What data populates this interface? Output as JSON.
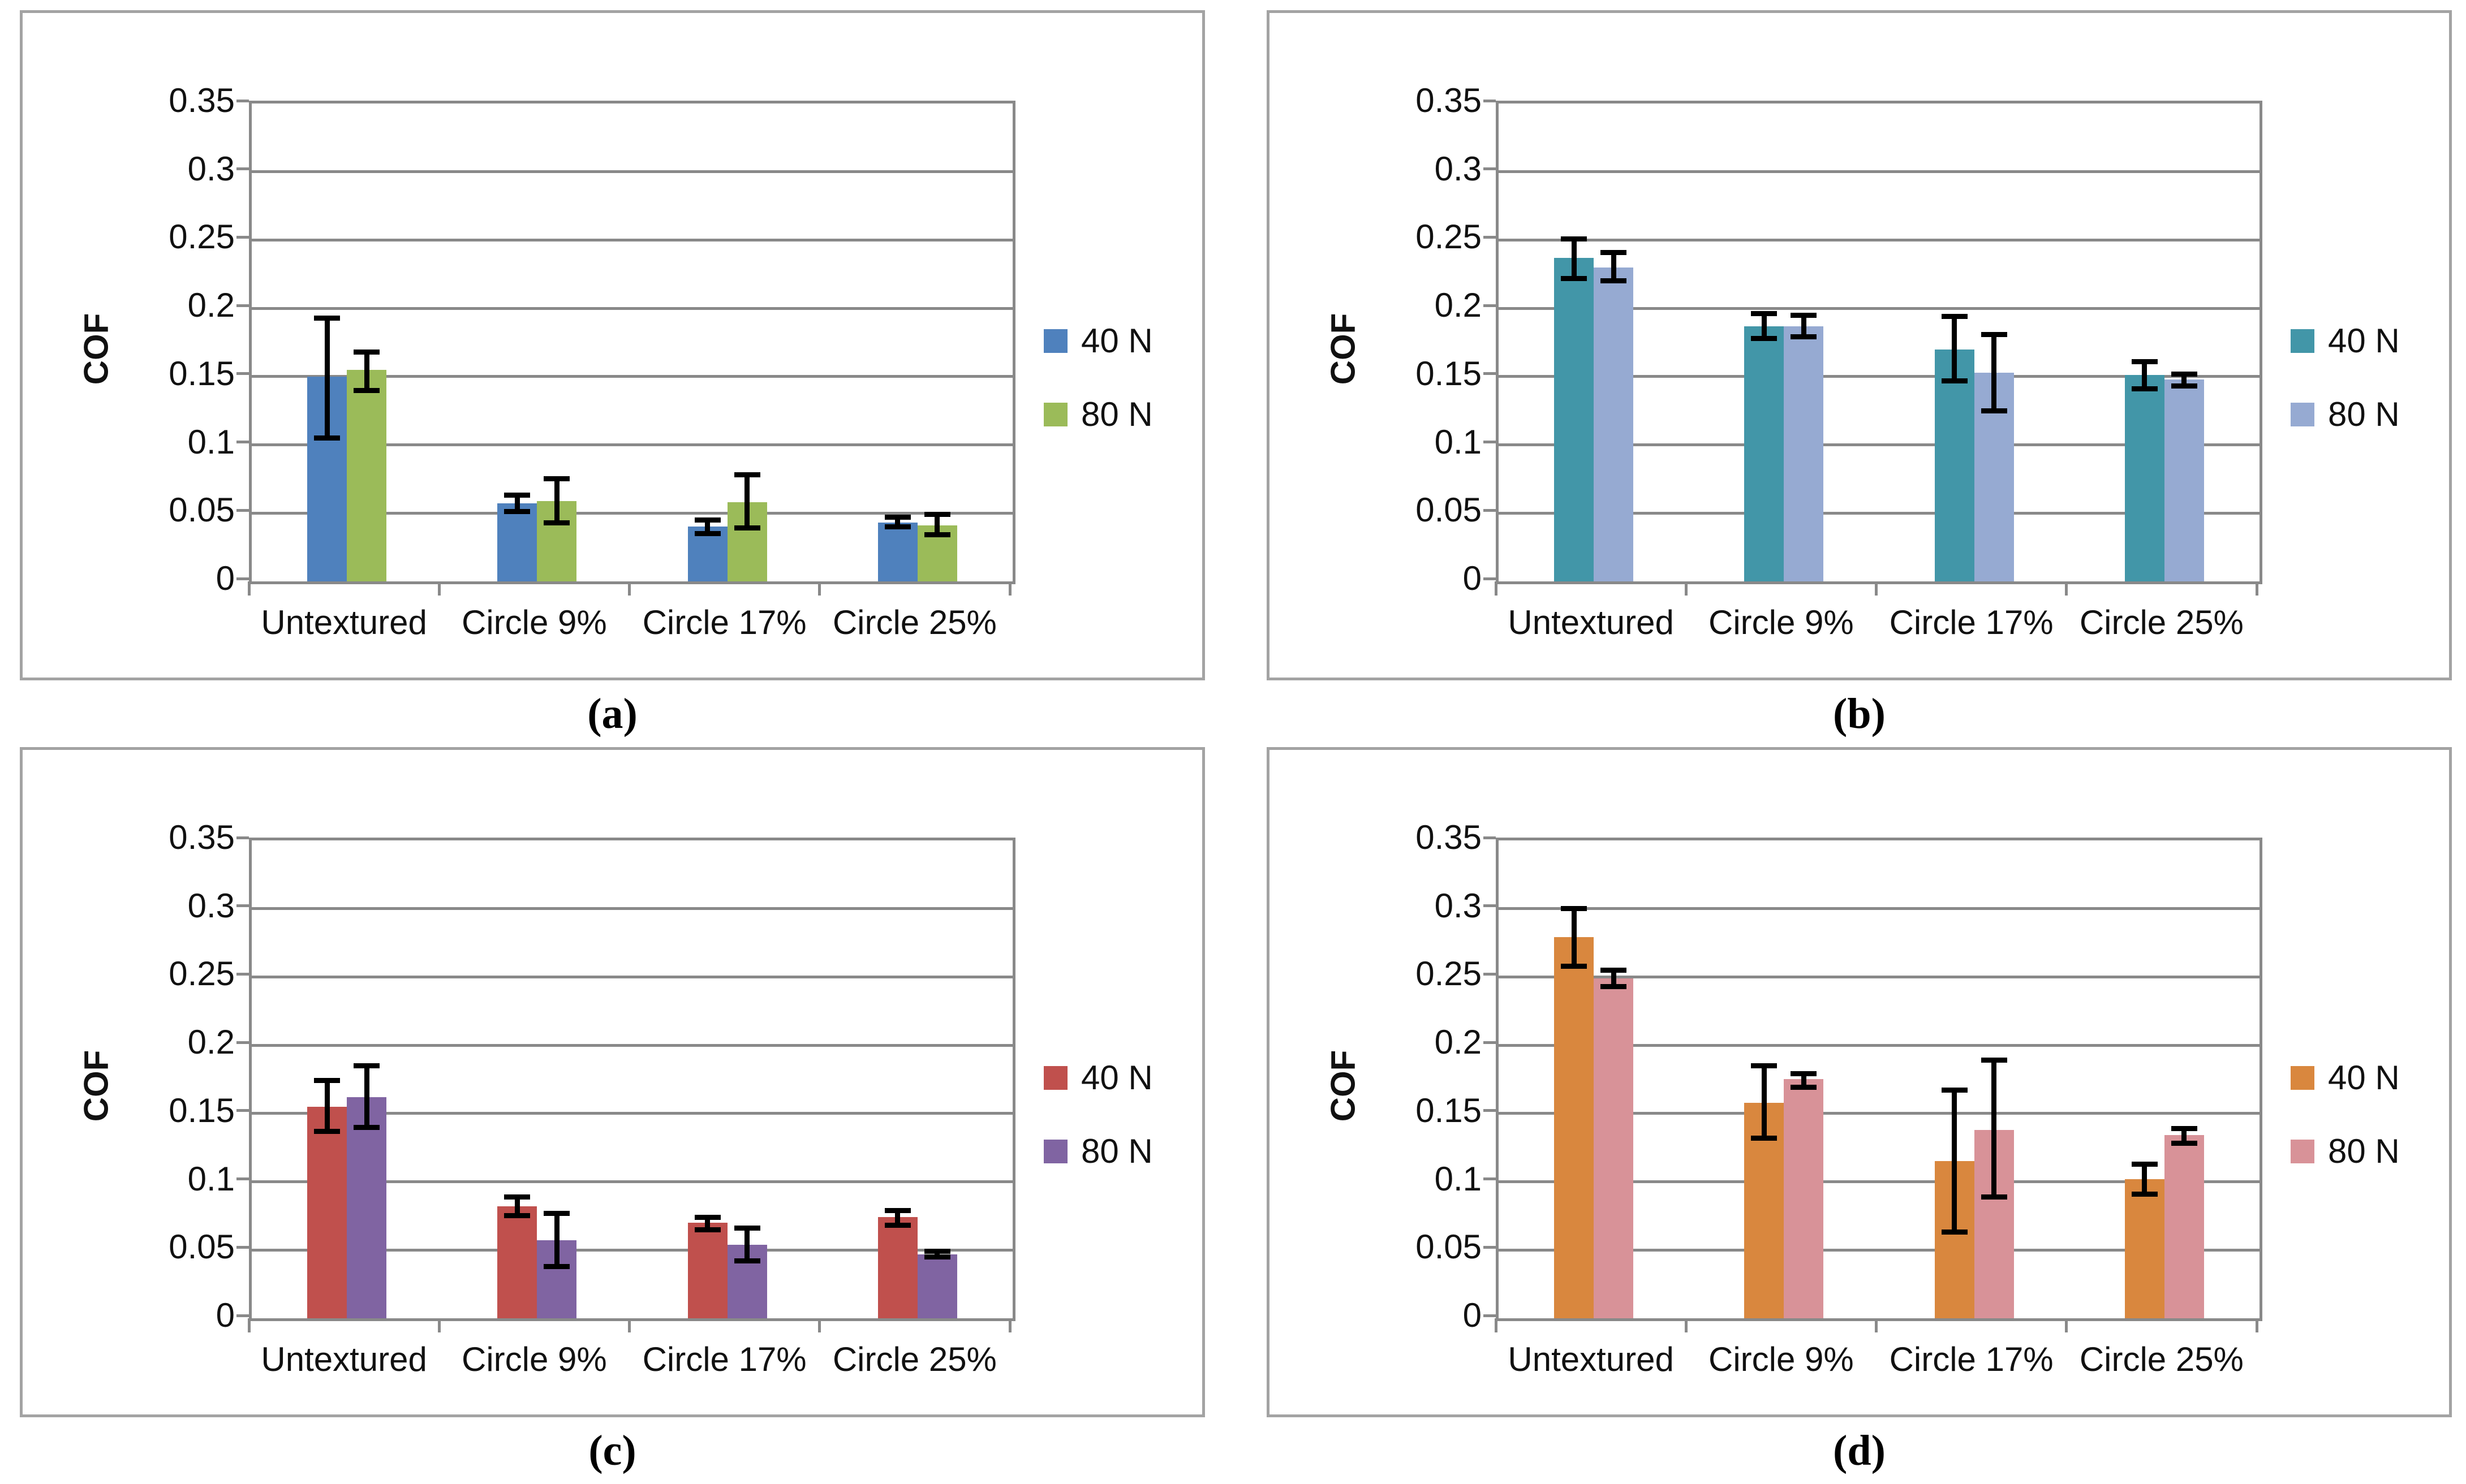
{
  "figure": {
    "ylabel": "COF",
    "ymax": 0.35,
    "y_tick_labels": [
      "0",
      "0.05",
      "0.1",
      "0.15",
      "0.2",
      "0.25",
      "0.3",
      "0.35"
    ],
    "categories": [
      "Untextured",
      "Circle 9%",
      "Circle 17%",
      "Circle 25%"
    ],
    "legend_labels": [
      "40 N",
      "80 N"
    ],
    "grid_color": "#898989",
    "panel_border_color": "#a3a3a3",
    "error_bar_color": "#000000"
  },
  "chart_data": [
    {
      "id": "a",
      "type": "bar",
      "caption": "(a)",
      "ylabel": "COF",
      "ylim": [
        0,
        0.35
      ],
      "grid": true,
      "legend_position": "right",
      "categories": [
        "Untextured",
        "Circle 9%",
        "Circle 17%",
        "Circle 25%"
      ],
      "series": [
        {
          "name": "40 N",
          "color": "#4F81BD",
          "values": [
            0.15,
            0.057,
            0.04,
            0.043
          ],
          "error_low": [
            0.105,
            0.051,
            0.035,
            0.04
          ],
          "error_high": [
            0.193,
            0.063,
            0.045,
            0.047
          ]
        },
        {
          "name": "80 N",
          "color": "#9BBB59",
          "values": [
            0.155,
            0.059,
            0.058,
            0.041
          ],
          "error_low": [
            0.14,
            0.043,
            0.039,
            0.034
          ],
          "error_high": [
            0.168,
            0.075,
            0.078,
            0.049
          ]
        }
      ]
    },
    {
      "id": "b",
      "type": "bar",
      "caption": "(b)",
      "ylabel": "COF",
      "ylim": [
        0,
        0.35
      ],
      "grid": true,
      "legend_position": "right",
      "categories": [
        "Untextured",
        "Circle 9%",
        "Circle 17%",
        "Circle 25%"
      ],
      "series": [
        {
          "name": "40 N",
          "color": "#4296A8",
          "values": [
            0.237,
            0.187,
            0.17,
            0.151
          ],
          "error_low": [
            0.222,
            0.178,
            0.147,
            0.141
          ],
          "error_high": [
            0.251,
            0.196,
            0.194,
            0.161
          ]
        },
        {
          "name": "80 N",
          "color": "#96AAD2",
          "values": [
            0.23,
            0.187,
            0.153,
            0.148
          ],
          "error_low": [
            0.22,
            0.179,
            0.125,
            0.143
          ],
          "error_high": [
            0.241,
            0.195,
            0.181,
            0.152
          ]
        }
      ]
    },
    {
      "id": "c",
      "type": "bar",
      "caption": "(c)",
      "ylabel": "COF",
      "ylim": [
        0,
        0.35
      ],
      "grid": true,
      "legend_position": "right",
      "categories": [
        "Untextured",
        "Circle 9%",
        "Circle 17%",
        "Circle 25%"
      ],
      "series": [
        {
          "name": "40 N",
          "color": "#C0504D",
          "values": [
            0.155,
            0.082,
            0.07,
            0.074
          ],
          "error_low": [
            0.137,
            0.075,
            0.065,
            0.068
          ],
          "error_high": [
            0.174,
            0.089,
            0.074,
            0.079
          ]
        },
        {
          "name": "80 N",
          "color": "#8064A2",
          "values": [
            0.162,
            0.057,
            0.054,
            0.047
          ],
          "error_low": [
            0.14,
            0.038,
            0.042,
            0.045
          ],
          "error_high": [
            0.185,
            0.077,
            0.066,
            0.049
          ]
        }
      ]
    },
    {
      "id": "d",
      "type": "bar",
      "caption": "(d)",
      "ylabel": "COF",
      "ylim": [
        0,
        0.35
      ],
      "grid": true,
      "legend_position": "right",
      "categories": [
        "Untextured",
        "Circle 9%",
        "Circle 17%",
        "Circle 25%"
      ],
      "series": [
        {
          "name": "40 N",
          "color": "#D9873E",
          "values": [
            0.279,
            0.158,
            0.115,
            0.102
          ],
          "error_low": [
            0.258,
            0.132,
            0.063,
            0.091
          ],
          "error_high": [
            0.3,
            0.185,
            0.167,
            0.113
          ]
        },
        {
          "name": "80 N",
          "color": "#D89298",
          "values": [
            0.249,
            0.175,
            0.138,
            0.134
          ],
          "error_low": [
            0.243,
            0.169,
            0.089,
            0.128
          ],
          "error_high": [
            0.255,
            0.179,
            0.189,
            0.139
          ]
        }
      ]
    }
  ]
}
